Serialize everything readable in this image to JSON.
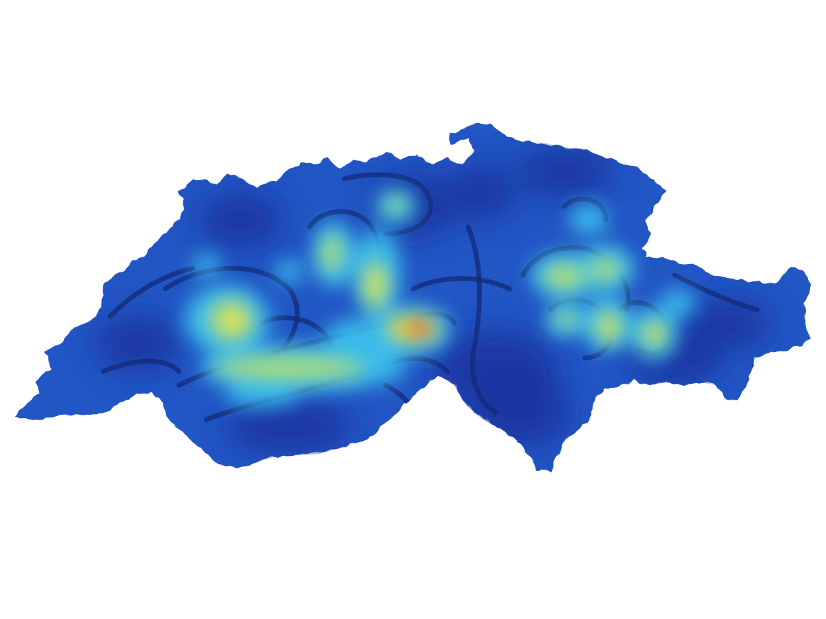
{
  "map": {
    "region": "Switzerland",
    "colors": {
      "background": "#ffffff",
      "base": "#2456c4",
      "deep": "#15309a",
      "contour": "#142a78",
      "cyan": "#3cc0ee",
      "lime": "#b8e070",
      "yellow": "#f2e23c",
      "red": "#f01818"
    },
    "colormap": [
      "#142a78",
      "#2456c4",
      "#3cc0ee",
      "#b8e070",
      "#f2e23c",
      "#f01818"
    ]
  },
  "chart_data": {
    "type": "heatmap",
    "title": "",
    "xlabel": "",
    "ylabel": "",
    "grid": false,
    "legend": "none"
  }
}
